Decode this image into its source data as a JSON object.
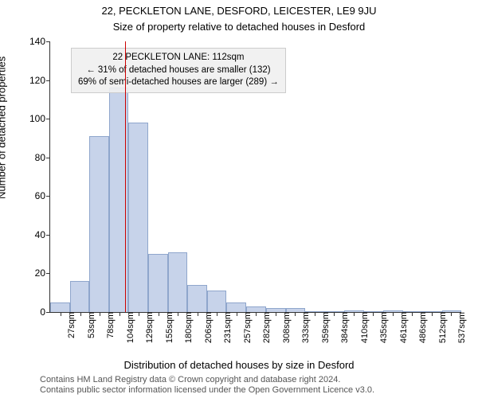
{
  "titles": {
    "line1": "22, PECKLETON LANE, DESFORD, LEICESTER, LE9 9JU",
    "line2": "Size of property relative to detached houses in Desford"
  },
  "ylabel": "Number of detached properties",
  "xlabel": "Distribution of detached houses by size in Desford",
  "footer": {
    "l1": "Contains HM Land Registry data © Crown copyright and database right 2024.",
    "l2": "Contains public sector information licensed under the Open Government Licence v3.0."
  },
  "chart": {
    "type": "histogram",
    "ylim": [
      0,
      140
    ],
    "ytick_step": 20,
    "yticks": [
      0,
      20,
      40,
      60,
      80,
      100,
      120,
      140
    ],
    "x_min": 14,
    "x_max": 550,
    "xtick_step": 25.5,
    "xticks": [
      {
        "v": 27,
        "label": "27sqm"
      },
      {
        "v": 53,
        "label": "53sqm"
      },
      {
        "v": 78,
        "label": "78sqm"
      },
      {
        "v": 104,
        "label": "104sqm"
      },
      {
        "v": 129,
        "label": "129sqm"
      },
      {
        "v": 155,
        "label": "155sqm"
      },
      {
        "v": 180,
        "label": "180sqm"
      },
      {
        "v": 206,
        "label": "206sqm"
      },
      {
        "v": 231,
        "label": "231sqm"
      },
      {
        "v": 257,
        "label": "257sqm"
      },
      {
        "v": 282,
        "label": "282sqm"
      },
      {
        "v": 308,
        "label": "308sqm"
      },
      {
        "v": 333,
        "label": "333sqm"
      },
      {
        "v": 359,
        "label": "359sqm"
      },
      {
        "v": 384,
        "label": "384sqm"
      },
      {
        "v": 410,
        "label": "410sqm"
      },
      {
        "v": 435,
        "label": "435sqm"
      },
      {
        "v": 461,
        "label": "461sqm"
      },
      {
        "v": 486,
        "label": "486sqm"
      },
      {
        "v": 512,
        "label": "512sqm"
      },
      {
        "v": 537,
        "label": "537sqm"
      }
    ],
    "bars": [
      {
        "x0": 14,
        "x1": 40,
        "y": 5
      },
      {
        "x0": 40,
        "x1": 65,
        "y": 16
      },
      {
        "x0": 65,
        "x1": 91,
        "y": 91
      },
      {
        "x0": 91,
        "x1": 116,
        "y": 116
      },
      {
        "x0": 116,
        "x1": 142,
        "y": 98
      },
      {
        "x0": 142,
        "x1": 168,
        "y": 30
      },
      {
        "x0": 168,
        "x1": 193,
        "y": 31
      },
      {
        "x0": 193,
        "x1": 219,
        "y": 14
      },
      {
        "x0": 219,
        "x1": 244,
        "y": 11
      },
      {
        "x0": 244,
        "x1": 270,
        "y": 5
      },
      {
        "x0": 270,
        "x1": 295,
        "y": 3
      },
      {
        "x0": 295,
        "x1": 321,
        "y": 2
      },
      {
        "x0": 321,
        "x1": 346,
        "y": 2
      },
      {
        "x0": 346,
        "x1": 372,
        "y": 0
      },
      {
        "x0": 372,
        "x1": 397,
        "y": 0
      },
      {
        "x0": 397,
        "x1": 423,
        "y": 1
      },
      {
        "x0": 423,
        "x1": 448,
        "y": 0
      },
      {
        "x0": 448,
        "x1": 474,
        "y": 1
      },
      {
        "x0": 474,
        "x1": 499,
        "y": 0
      },
      {
        "x0": 499,
        "x1": 525,
        "y": 0
      },
      {
        "x0": 525,
        "x1": 550,
        "y": 1
      }
    ],
    "bar_fill": "#c7d3ea",
    "bar_stroke": "#8fa6cc",
    "background_color": "#ffffff",
    "axis_color": "#333333",
    "marker_line": {
      "x": 112,
      "color": "#cc0000",
      "width": 1
    },
    "annotation": {
      "l1": "22 PECKLETON LANE: 112sqm",
      "l2": "← 31% of detached houses are smaller (132)",
      "l3": "69% of semi-detached houses are larger (289) →",
      "fontsize": 11.5,
      "box_border": "#cccccc",
      "box_fill": "#f0f0f0"
    }
  }
}
